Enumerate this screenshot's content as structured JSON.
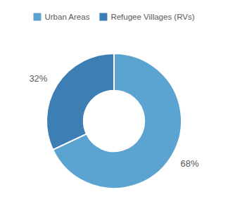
{
  "chart_data": {
    "type": "donut",
    "categories": [
      "Urban Areas",
      "Refugee Villages (RVs)"
    ],
    "values": [
      68,
      32
    ],
    "value_labels": [
      "68%",
      "32%"
    ],
    "colors": [
      "#5ba3d0",
      "#3d7eb5"
    ],
    "data_labels": true,
    "legend": "top"
  }
}
